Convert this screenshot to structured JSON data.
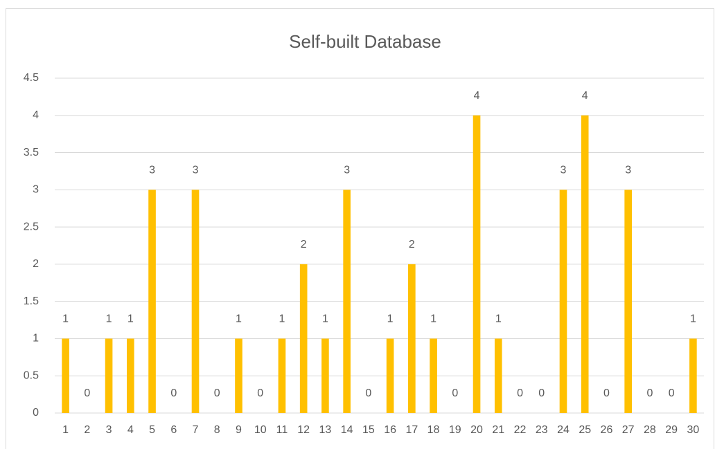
{
  "chart_data": {
    "type": "bar",
    "title": "Self-built Database",
    "categories": [
      "1",
      "2",
      "3",
      "4",
      "5",
      "6",
      "7",
      "8",
      "9",
      "10",
      "11",
      "12",
      "13",
      "14",
      "15",
      "16",
      "17",
      "18",
      "19",
      "20",
      "21",
      "22",
      "23",
      "24",
      "25",
      "26",
      "27",
      "28",
      "29",
      "30"
    ],
    "values": [
      1,
      0,
      1,
      1,
      3,
      0,
      3,
      0,
      1,
      0,
      1,
      2,
      1,
      3,
      0,
      1,
      2,
      1,
      0,
      4,
      1,
      0,
      0,
      3,
      4,
      0,
      3,
      0,
      0,
      1
    ],
    "color": "#ffc000",
    "ylim": [
      0,
      4.5
    ],
    "yticks": [
      0,
      0.5,
      1,
      1.5,
      2,
      2.5,
      3,
      3.5,
      4,
      4.5
    ],
    "grid": true,
    "data_labels": true
  }
}
